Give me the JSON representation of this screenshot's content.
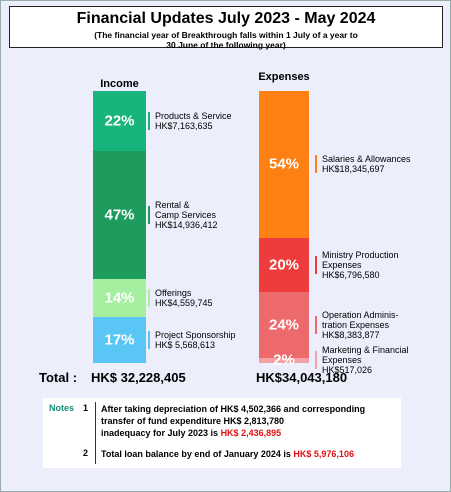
{
  "chart_data": {
    "type": "stacked-bar",
    "title": "Financial Updates July 2023 - May 2024",
    "subtitle": "(The financial year of Breakthrough falls within 1 July of a year to\n30 June of the following year)",
    "total_label": "Total :",
    "stacks": [
      {
        "name": "Income",
        "total": "HK$ 32,228,405",
        "values": [
          22,
          47,
          14,
          17
        ],
        "value_labels": [
          "22%",
          "47%",
          "14%",
          "17%"
        ],
        "labels": [
          "Products & Service",
          "Rental &\nCamp Services",
          "Offerings",
          "Project Sponsorship"
        ],
        "amounts": [
          "HK$7,163,635",
          "HK$14,936,412",
          "HK$4,559,745",
          "HK$ 5,568,613"
        ],
        "colors": [
          "#17b47c",
          "#1e9c5e",
          "#a6eea0",
          "#5ac6f6"
        ]
      },
      {
        "name": "Expenses",
        "total": "HK$34,043,180",
        "values": [
          54,
          20,
          24,
          2
        ],
        "value_labels": [
          "54%",
          "20%",
          "24%",
          "2%"
        ],
        "labels": [
          "Salaries & Allowances",
          "Ministry Production\nExpenses",
          "Operation Adminis-\ntration Expenses",
          "Marketing & Financial\nExpenses"
        ],
        "amounts": [
          "HK$18,345,697",
          "HK$6,796,580",
          "HK$8,383,877",
          "HK$517,026"
        ],
        "colors": [
          "#ff8012",
          "#ee3b3b",
          "#ec6a6c",
          "#f3a0a6"
        ]
      }
    ],
    "notes_label": "Notes",
    "notes": [
      {
        "number": "1",
        "text": "After taking depreciation of HK$ 4,502,366 and corresponding transfer of fund expenditure HK$ 2,813,780\ninadequacy for July 2023 is ",
        "highlight": "HK$ 2,436,895"
      },
      {
        "number": "2",
        "text": "Total loan balance by end of January 2024 is ",
        "highlight": "HK$ 5,976,106"
      }
    ]
  }
}
